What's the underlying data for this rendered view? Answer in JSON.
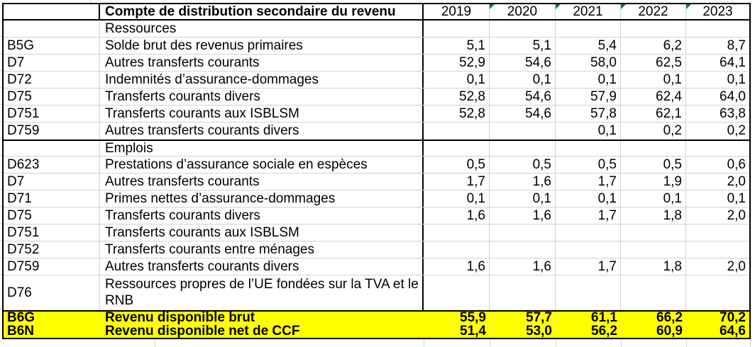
{
  "sheet": {
    "header": {
      "title": "Compte de distribution secondaire du revenu",
      "years": [
        "2019",
        "2020",
        "2021",
        "2022",
        "2023"
      ],
      "year_has_marker": [
        false,
        true,
        true,
        true,
        true
      ]
    },
    "rows": [
      {
        "code": "",
        "label": "Ressources",
        "values": [
          "",
          "",
          "",
          "",
          ""
        ],
        "kind": "label"
      },
      {
        "code": "B5G",
        "label": "Solde brut des revenus primaires",
        "values": [
          "5,1",
          "5,1",
          "5,4",
          "6,2",
          "8,7"
        ],
        "kind": "data"
      },
      {
        "code": "D7",
        "label": "Autres transferts courants",
        "values": [
          "52,9",
          "54,6",
          "58,0",
          "62,5",
          "64,1"
        ],
        "kind": "data"
      },
      {
        "code": "D72",
        "label": "Indemnités d’assurance-dommages",
        "values": [
          "0,1",
          "0,1",
          "0,1",
          "0,1",
          "0,1"
        ],
        "kind": "data"
      },
      {
        "code": "D75",
        "label": "Transferts courants divers",
        "values": [
          "52,8",
          "54,6",
          "57,9",
          "62,4",
          "64,0"
        ],
        "kind": "data"
      },
      {
        "code": "D751",
        "label": "Transferts courants aux ISBLSM",
        "values": [
          "52,8",
          "54,6",
          "57,8",
          "62,1",
          "63,8"
        ],
        "kind": "data"
      },
      {
        "code": "D759",
        "label": "Autres transferts courants divers",
        "values": [
          "",
          "",
          "0,1",
          "0,2",
          "0,2"
        ],
        "kind": "data"
      },
      {
        "code": "",
        "label": "Emplois",
        "values": [
          "",
          "",
          "",
          "",
          ""
        ],
        "kind": "label",
        "section_start": true
      },
      {
        "code": "D623",
        "label": "Prestations d’assurance sociale en espèces",
        "values": [
          "0,5",
          "0,5",
          "0,5",
          "0,5",
          "0,6"
        ],
        "kind": "data"
      },
      {
        "code": "D7",
        "label": "Autres transferts courants",
        "values": [
          "1,7",
          "1,6",
          "1,7",
          "1,9",
          "2,0"
        ],
        "kind": "data"
      },
      {
        "code": "D71",
        "label": "Primes nettes d’assurance-dommages",
        "values": [
          "0,1",
          "0,1",
          "0,1",
          "0,1",
          "0,1"
        ],
        "kind": "data"
      },
      {
        "code": "D75",
        "label": "Transferts courants divers",
        "values": [
          "1,6",
          "1,6",
          "1,7",
          "1,8",
          "2,0"
        ],
        "kind": "data"
      },
      {
        "code": "D751",
        "label": "Transferts courants aux ISBLSM",
        "values": [
          "",
          "",
          "",
          "",
          ""
        ],
        "kind": "data"
      },
      {
        "code": "D752",
        "label": "Transferts courants entre ménages",
        "values": [
          "",
          "",
          "",
          "",
          ""
        ],
        "kind": "data"
      },
      {
        "code": "D759",
        "label": "Autres transferts courants divers",
        "values": [
          "1,6",
          "1,6",
          "1,7",
          "1,8",
          "2,0"
        ],
        "kind": "data"
      },
      {
        "code": "D76",
        "label": "Ressources propres de l’UE fondées sur la TVA et le RNB",
        "values": [
          "",
          "",
          "",
          "",
          ""
        ],
        "kind": "tall"
      },
      {
        "code": "B6G",
        "label": "Revenu disponible brut",
        "values": [
          "55,9",
          "57,7",
          "61,1",
          "66,2",
          "70,2"
        ],
        "kind": "total",
        "section_start": true
      },
      {
        "code": "B6N",
        "label": "Revenu disponible net de CCF",
        "values": [
          "51,4",
          "53,0",
          "56,2",
          "60,9",
          "64,6"
        ],
        "kind": "total"
      }
    ],
    "colors": {
      "highlight": "#FFFF00",
      "gridline": "#D2D2D2",
      "border": "#000000",
      "marker_green": "#107C41",
      "text": "#000000"
    }
  }
}
